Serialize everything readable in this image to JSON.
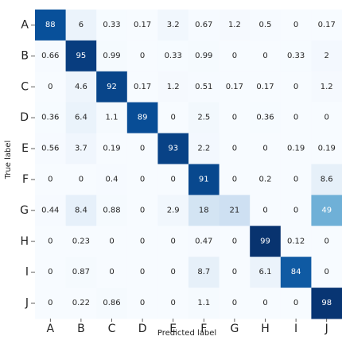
{
  "chart_data": {
    "type": "heatmap",
    "title": "",
    "xlabel": "Predicted label",
    "ylabel": "True label",
    "x_categories": [
      "A",
      "B",
      "C",
      "D",
      "E",
      "F",
      "G",
      "H",
      "I",
      "J"
    ],
    "y_categories": [
      "A",
      "B",
      "C",
      "D",
      "E",
      "F",
      "G",
      "H",
      "I",
      "J"
    ],
    "value_range": [
      0,
      100
    ],
    "colormap": "Blues",
    "grid": false,
    "values": [
      [
        "88",
        "6",
        "0.33",
        "0.17",
        "3.2",
        "0.67",
        "1.2",
        "0.5",
        "0",
        "0.17"
      ],
      [
        "0.66",
        "95",
        "0.99",
        "0",
        "0.33",
        "0.99",
        "0",
        "0",
        "0.33",
        "2"
      ],
      [
        "0",
        "4.6",
        "92",
        "0.17",
        "1.2",
        "0.51",
        "0.17",
        "0.17",
        "0",
        "1.2"
      ],
      [
        "0.36",
        "6.4",
        "1.1",
        "89",
        "0",
        "2.5",
        "0",
        "0.36",
        "0",
        "0"
      ],
      [
        "0.56",
        "3.7",
        "0.19",
        "0",
        "93",
        "2.2",
        "0",
        "0",
        "0.19",
        "0.19"
      ],
      [
        "0",
        "0",
        "0.4",
        "0",
        "0",
        "91",
        "0",
        "0.2",
        "0",
        "8.6"
      ],
      [
        "0.44",
        "8.4",
        "0.88",
        "0",
        "2.9",
        "18",
        "21",
        "0",
        "0",
        "49"
      ],
      [
        "0",
        "0.23",
        "0",
        "0",
        "0",
        "0.47",
        "0",
        "99",
        "0.12",
        "0"
      ],
      [
        "0",
        "0.87",
        "0",
        "0",
        "0",
        "8.7",
        "0",
        "6.1",
        "84",
        "0"
      ],
      [
        "0",
        "0.22",
        "0.86",
        "0",
        "0",
        "1.1",
        "0",
        "0",
        "0",
        "98"
      ]
    ]
  }
}
